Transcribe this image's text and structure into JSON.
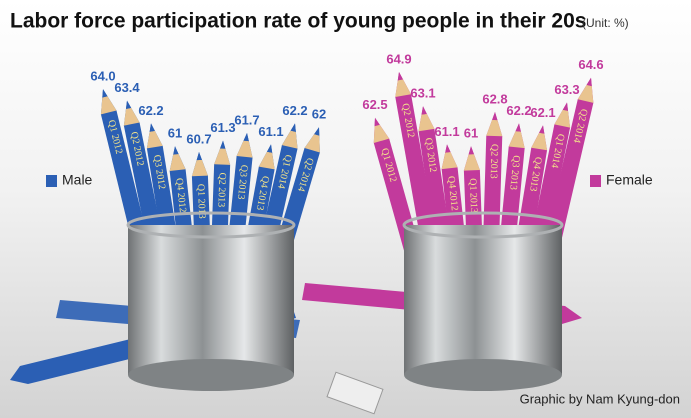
{
  "chart_data": {
    "type": "pencil",
    "title": "Labor force participation rate of young people in their 20s",
    "subtitle": "(Unit: %)",
    "credit": "Graphic by Nam Kyung-don",
    "categories": [
      "Q1 2012",
      "Q2 2012",
      "Q3 2012",
      "Q4 2012",
      "Q1 2013",
      "Q2 2013",
      "Q3 2013",
      "Q4 2013",
      "Q1 2014",
      "Q2 2014"
    ],
    "series": [
      {
        "name": "Male",
        "color": "#2b5fb4",
        "values": [
          64.0,
          63.4,
          62.2,
          61,
          60.7,
          61.3,
          61.7,
          61.1,
          62.2,
          62
        ],
        "value_labels": [
          "64.0",
          "63.4",
          "62.2",
          "61",
          "60.7",
          "61.3",
          "61.7",
          "61.1",
          "62.2",
          "62"
        ]
      },
      {
        "name": "Female",
        "color": "#c23a9c",
        "values": [
          62.5,
          64.9,
          63.1,
          61.1,
          61,
          62.8,
          62.2,
          62.1,
          63.3,
          64.6
        ],
        "value_labels": [
          "62.5",
          "64.9",
          "63.1",
          "61.1",
          "61",
          "62.8",
          "62.2",
          "62.1",
          "63.3",
          "64.6"
        ]
      }
    ]
  }
}
